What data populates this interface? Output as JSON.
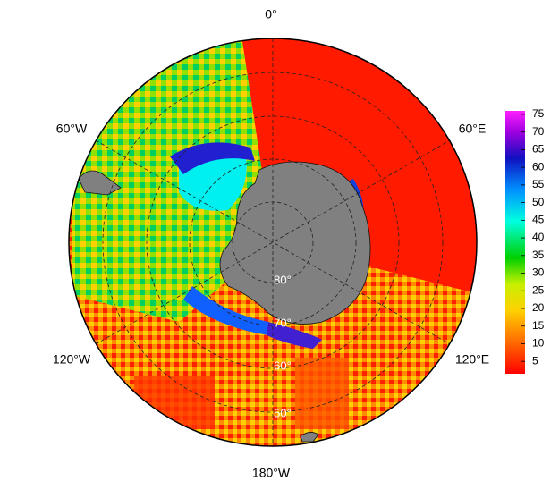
{
  "map": {
    "lon_labels": [
      "0°",
      "60°E",
      "120°E",
      "180°W",
      "120°W",
      "60°W"
    ],
    "lat_labels": [
      "80°",
      "70°",
      "60°",
      "50°"
    ],
    "colorbar": {
      "lim": [
        1.5,
        76
      ],
      "ticks": [
        5,
        10,
        15,
        20,
        25,
        30,
        35,
        40,
        45,
        50,
        55,
        60,
        65,
        70,
        75
      ]
    }
  }
}
